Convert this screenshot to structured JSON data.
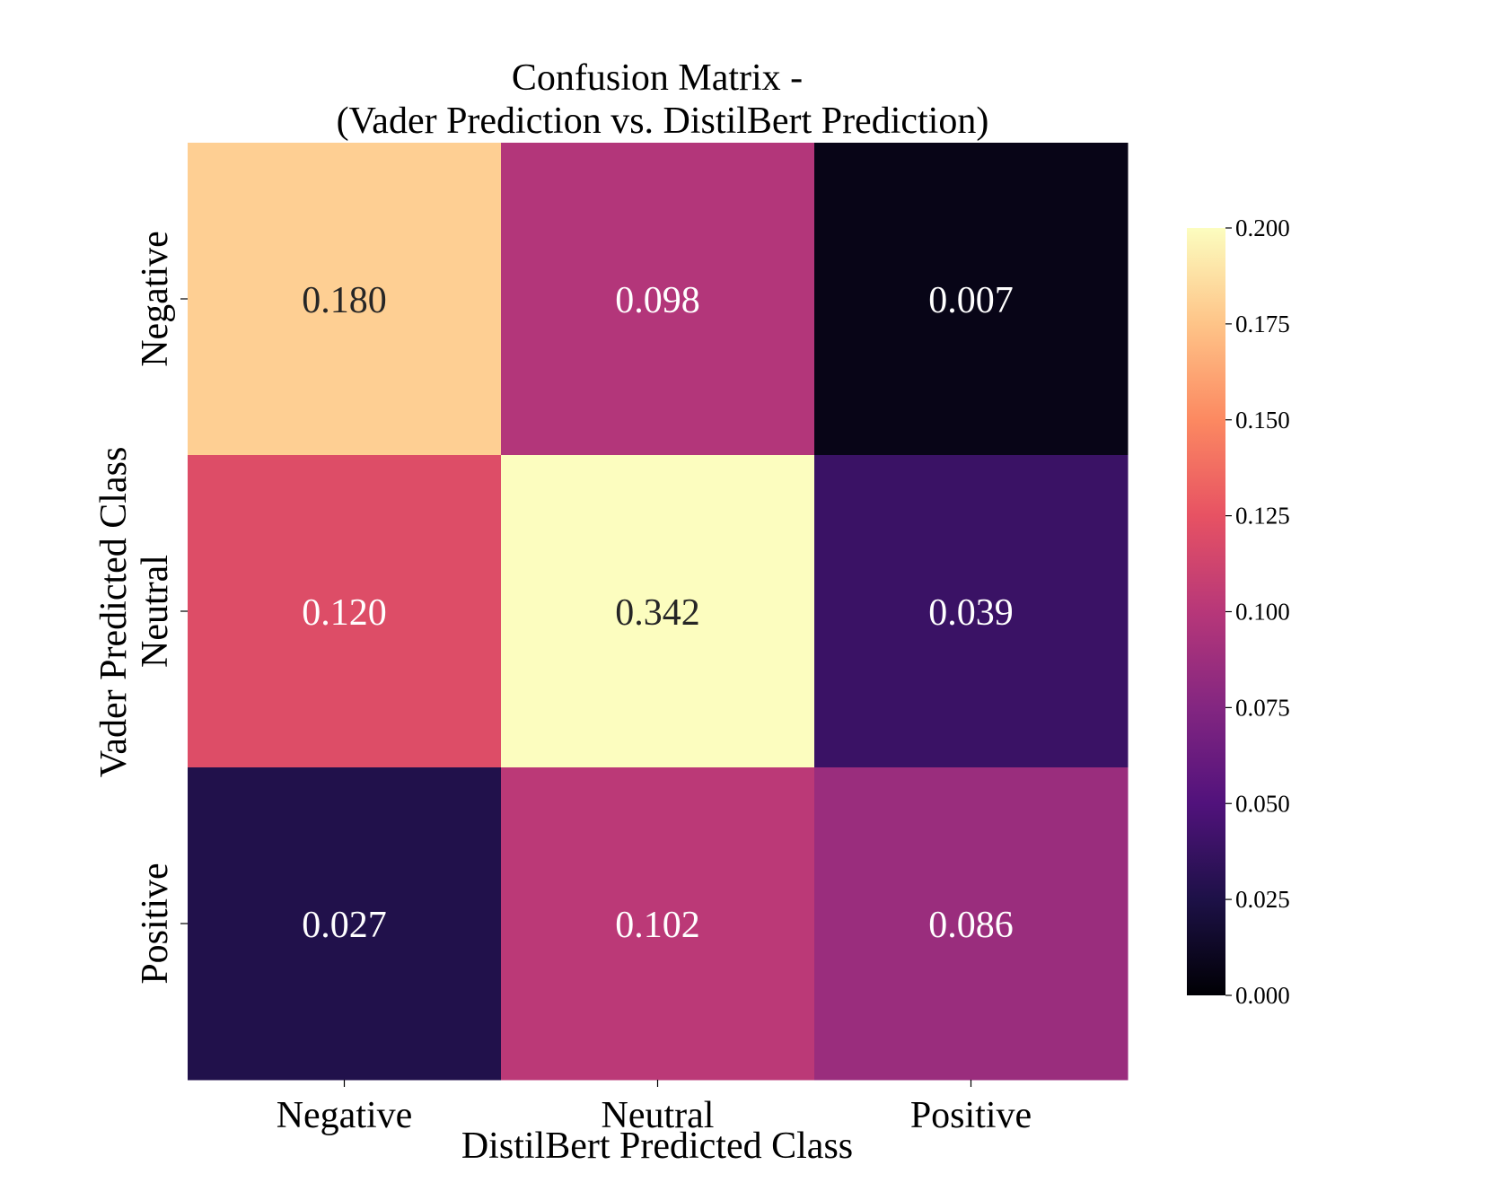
{
  "chart_data": {
    "type": "heatmap",
    "title_line1": "Confusion Matrix -",
    "title_line2": "(Vader Prediction vs. DistilBert Prediction)",
    "xlabel": "DistilBert Predicted Class",
    "ylabel": "Vader Predicted Class",
    "x_categories": [
      "Negative",
      "Neutral",
      "Positive"
    ],
    "y_categories": [
      "Negative",
      "Neutral",
      "Positive"
    ],
    "values": [
      [
        0.18,
        0.098,
        0.007
      ],
      [
        0.12,
        0.342,
        0.039
      ],
      [
        0.027,
        0.102,
        0.086
      ]
    ],
    "cell_labels": [
      [
        "0.180",
        "0.098",
        "0.007"
      ],
      [
        "0.120",
        "0.342",
        "0.039"
      ],
      [
        "0.027",
        "0.102",
        "0.086"
      ]
    ],
    "colormap": "magma",
    "color_range": [
      0.0,
      0.2
    ],
    "colorbar_ticks": [
      "0.000",
      "0.025",
      "0.050",
      "0.075",
      "0.100",
      "0.125",
      "0.150",
      "0.175",
      "0.200"
    ],
    "colorbar_tick_values": [
      0.0,
      0.025,
      0.05,
      0.075,
      0.1,
      0.125,
      0.15,
      0.175,
      0.2
    ],
    "grid": false
  }
}
